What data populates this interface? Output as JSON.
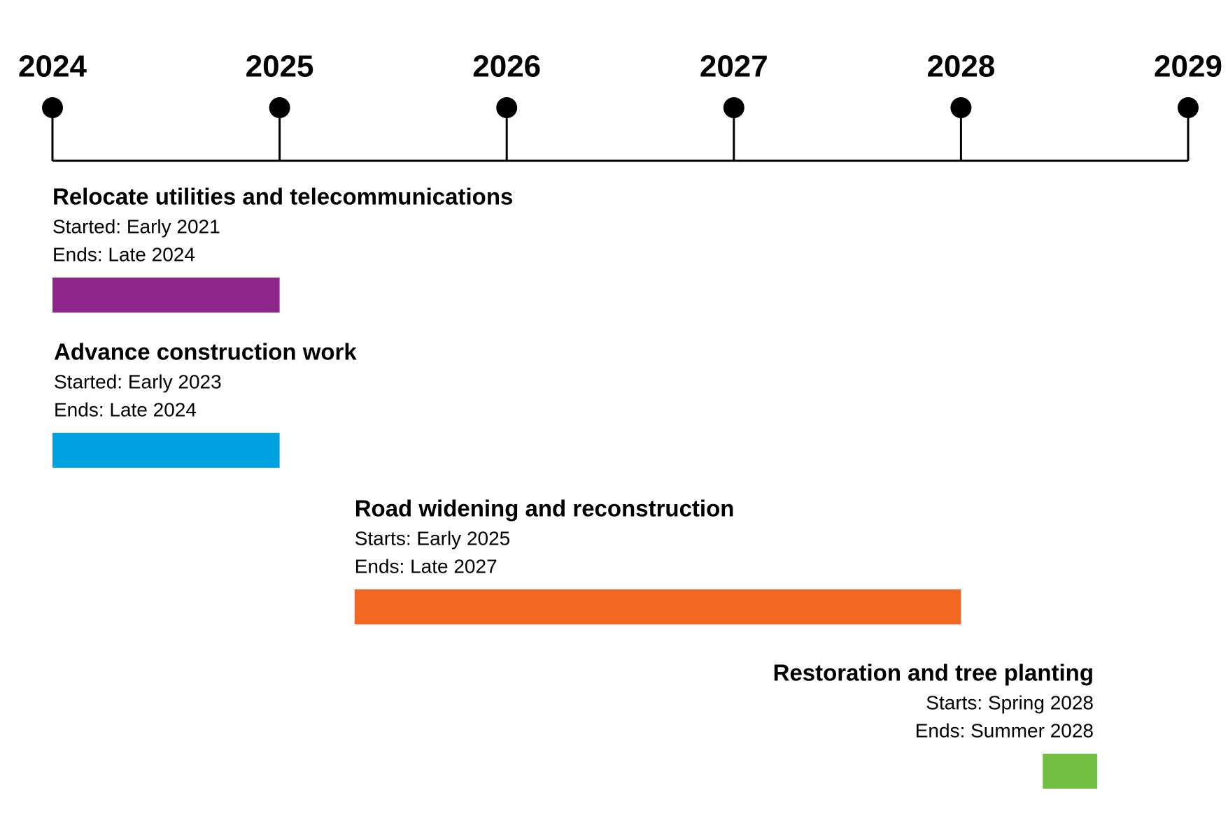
{
  "chart_data": {
    "type": "timeline",
    "xlim": [
      2024,
      2029
    ],
    "xticks": [
      2024,
      2025,
      2026,
      2027,
      2028,
      2029
    ],
    "tasks": [
      {
        "name": "Relocate utilities and telecommunications",
        "lines": [
          "Started: Early 2021",
          "Ends: Late 2024"
        ],
        "color": "#8e268c",
        "start": 2024,
        "end": 2025
      },
      {
        "name": "Advance construction work",
        "lines": [
          "Started: Early 2023",
          "Ends: Late 2024"
        ],
        "color": "#00a1e1",
        "start": 2024,
        "end": 2025
      },
      {
        "name": "Road widening and reconstruction",
        "lines": [
          "Starts: Early 2025",
          "Ends: Late 2027"
        ],
        "color": "#f26722",
        "start": 2025.33,
        "end": 2028
      },
      {
        "name": "Restoration and tree planting",
        "lines": [
          "Starts: Spring 2028",
          "Ends: Summer 2028"
        ],
        "color": "#72bf44",
        "start": 2028.36,
        "end": 2028.6
      }
    ]
  }
}
